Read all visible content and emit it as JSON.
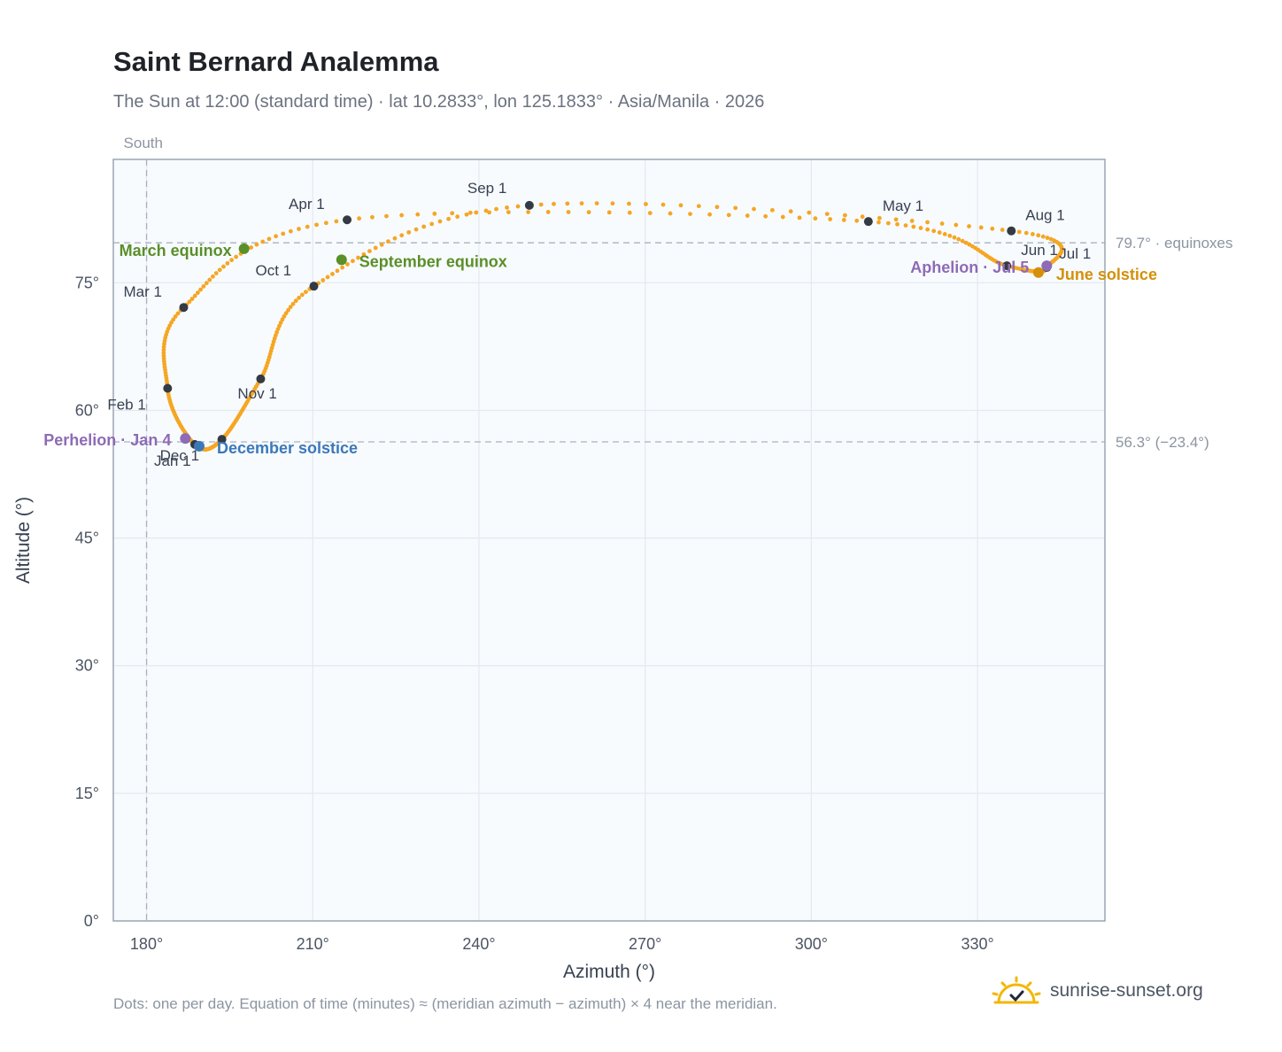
{
  "header": {
    "title": "Saint Bernard Analemma",
    "subtitle": "The Sun at 12:00 (standard time) · lat 10.2833°, lon 125.1833° · Asia/Manila · 2026"
  },
  "footer": {
    "note": "Dots: one per day. Equation of time (minutes) ≈ (meridian azimuth − azimuth) × 4 near the meridian.",
    "brand": "sunrise-sunset.org"
  },
  "chart_data": {
    "type": "scatter",
    "xlabel": "Azimuth (°)",
    "ylabel": "Altitude (°)",
    "xlim": [
      174,
      353
    ],
    "ylim": [
      0,
      89.5
    ],
    "x_ticks": [
      180,
      210,
      240,
      270,
      300,
      330
    ],
    "x_tick_labels": [
      "180°",
      "210°",
      "240°",
      "270°",
      "300°",
      "330°"
    ],
    "y_ticks": [
      0,
      15,
      30,
      45,
      60,
      75
    ],
    "y_tick_labels": [
      "0°",
      "15°",
      "30°",
      "45°",
      "60°",
      "75°"
    ],
    "grid": true,
    "series_color": "#f5a623",
    "reference_lines": [
      {
        "axis": "x",
        "value": 180,
        "label": "South"
      },
      {
        "axis": "y",
        "value": 79.7,
        "label": "79.7° · equinoxes"
      },
      {
        "axis": "y",
        "value": 56.3,
        "label": "56.3° (−23.4°)"
      }
    ],
    "month_markers": [
      {
        "label": "Jan 1",
        "az": 188.7,
        "alt": 56.0
      },
      {
        "label": "Feb 1",
        "az": 183.8,
        "alt": 62.6
      },
      {
        "label": "Mar 1",
        "az": 186.7,
        "alt": 72.1
      },
      {
        "label": "Apr 1",
        "az": 216.2,
        "alt": 82.4
      },
      {
        "label": "May 1",
        "az": 310.3,
        "alt": 82.2
      },
      {
        "label": "Jun 1",
        "az": 335.3,
        "alt": 77.0
      },
      {
        "label": "Jul 1",
        "az": 342.5,
        "alt": 76.8
      },
      {
        "label": "Aug 1",
        "az": 336.1,
        "alt": 81.1
      },
      {
        "label": "Sep 1",
        "az": 249.1,
        "alt": 84.1
      },
      {
        "label": "Oct 1",
        "az": 210.2,
        "alt": 74.6
      },
      {
        "label": "Nov 1",
        "az": 200.6,
        "alt": 63.7
      },
      {
        "label": "Dec 1",
        "az": 193.6,
        "alt": 56.6
      }
    ],
    "events": [
      {
        "label": "March equinox",
        "az": 197.6,
        "alt": 79.0,
        "color": "#5a8f29"
      },
      {
        "label": "September equinox",
        "az": 215.2,
        "alt": 77.7,
        "color": "#5a8f29"
      },
      {
        "label": "June solstice",
        "az": 341.0,
        "alt": 76.2,
        "color": "#d4900a"
      },
      {
        "label": "December solstice",
        "az": 189.5,
        "alt": 55.8,
        "color": "#3b78b8"
      },
      {
        "label": "Perhelion · Jan 4",
        "az": 187.0,
        "alt": 56.7,
        "color": "#8e6bb5"
      },
      {
        "label": "Aphelion · Jul 5",
        "az": 342.5,
        "alt": 77.0,
        "color": "#8e6bb5"
      }
    ]
  }
}
